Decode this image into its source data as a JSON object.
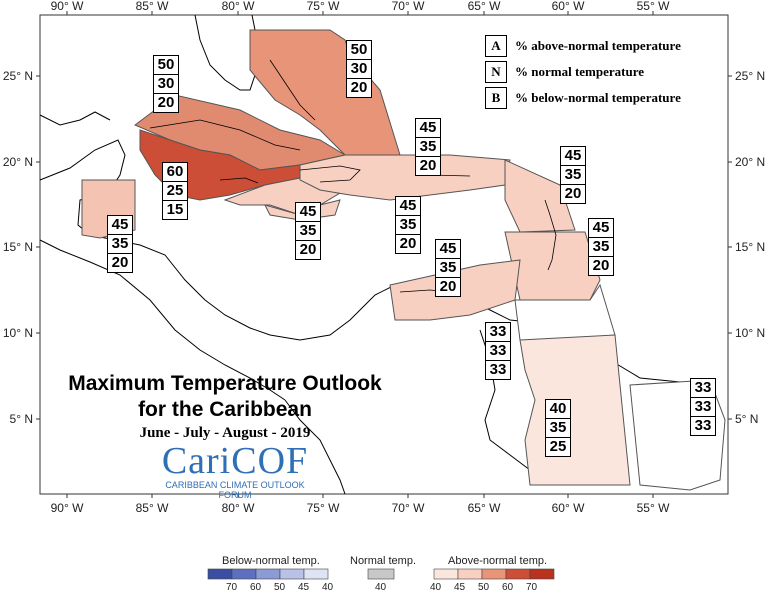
{
  "map": {
    "x_ticks": [
      "90° W",
      "85° W",
      "80° W",
      "75° W",
      "70° W",
      "65° W",
      "60° W",
      "55° W"
    ],
    "y_ticks": [
      "25° N",
      "20° N",
      "15° N",
      "10° N",
      "5° N"
    ],
    "regions": [
      {
        "id": "bahamas",
        "values": [
          "50",
          "30",
          "20"
        ],
        "fill": "#e89478"
      },
      {
        "id": "cuba-west",
        "values": [
          "50",
          "30",
          "20"
        ],
        "fill": "#e08a6f"
      },
      {
        "id": "jamaica-cayman",
        "values": [
          "60",
          "25",
          "15"
        ],
        "fill": "#cc4e37"
      },
      {
        "id": "belize",
        "values": [
          "45",
          "35",
          "20"
        ],
        "fill": "#f5c3b2"
      },
      {
        "id": "haiti-west",
        "values": [
          "45",
          "35",
          "20"
        ],
        "fill": "#f8d0c1"
      },
      {
        "id": "greater-antilles-east",
        "values": [
          "45",
          "35",
          "20"
        ],
        "fill": "#f8d0c1"
      },
      {
        "id": "dr-pr",
        "values": [
          "45",
          "35",
          "20"
        ],
        "fill": "#f8d0c1"
      },
      {
        "id": "leeward",
        "values": [
          "45",
          "35",
          "20"
        ],
        "fill": "#f8d0c1"
      },
      {
        "id": "windward",
        "values": [
          "45",
          "35",
          "20"
        ],
        "fill": "#f8d0c1"
      },
      {
        "id": "abc-islands",
        "values": [
          "45",
          "35",
          "20"
        ],
        "fill": "#f8d0c1"
      },
      {
        "id": "trinidad",
        "values": [
          "33",
          "33",
          "33"
        ],
        "fill": "#ffffff"
      },
      {
        "id": "guyana",
        "values": [
          "40",
          "35",
          "25"
        ],
        "fill": "#fbe6de"
      },
      {
        "id": "french-guiana",
        "values": [
          "33",
          "33",
          "33"
        ],
        "fill": "#ffffff"
      }
    ]
  },
  "legend_key": [
    {
      "key": "A",
      "text": "% above-normal temperature"
    },
    {
      "key": "N",
      "text": "% normal temperature"
    },
    {
      "key": "B",
      "text": "% below-normal temperature"
    }
  ],
  "title": {
    "line1": "Maximum Temperature Outlook",
    "line2": "for the Caribbean",
    "period": "June - July - August - 2019"
  },
  "logo": {
    "name": "CariCOF",
    "tagline": "CARIBBEAN CLIMATE OUTLOOK FORUM"
  },
  "colorbar": {
    "below_title": "Below-normal temp.",
    "normal_title": "Normal temp.",
    "above_title": "Above-normal temp.",
    "below_colors": [
      "#3a4fa3",
      "#5e6fc0",
      "#8c9ad6",
      "#b8c1e6",
      "#dfe4f4"
    ],
    "below_labels": [
      "70",
      "60",
      "50",
      "45",
      "40"
    ],
    "normal_color": "#c8c8c8",
    "normal_labels": [
      "40"
    ],
    "above_colors": [
      "#fbe6de",
      "#f8d0c1",
      "#e89478",
      "#cc4e37",
      "#b8321f"
    ],
    "above_labels": [
      "40",
      "45",
      "50",
      "60",
      "70"
    ]
  }
}
